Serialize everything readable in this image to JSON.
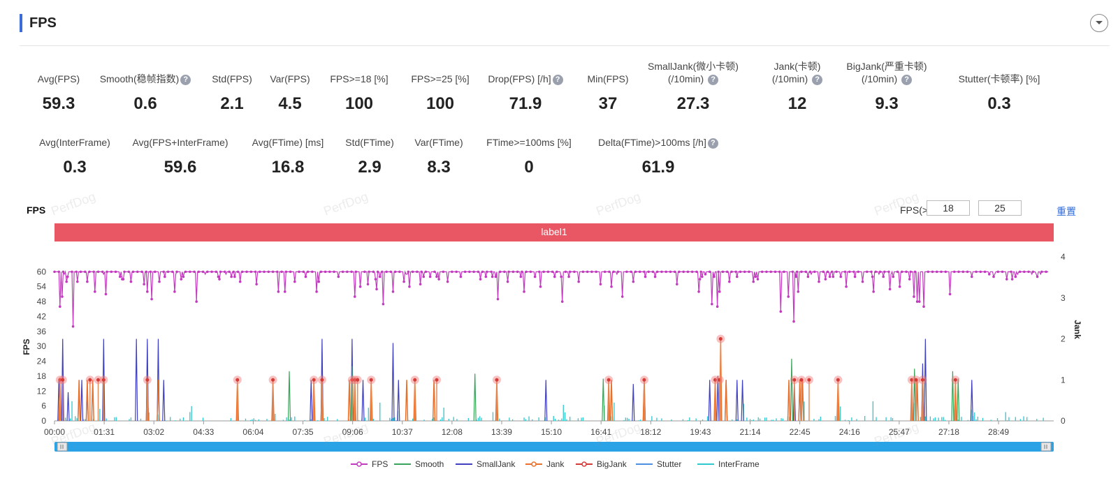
{
  "panel": {
    "title": "FPS"
  },
  "stats_row1": [
    {
      "label": "Avg(FPS)",
      "value": "59.3",
      "help": false
    },
    {
      "label": "Smooth(稳帧指数)",
      "value": "0.6",
      "help": true
    },
    {
      "label": "Std(FPS)",
      "value": "2.1",
      "help": false
    },
    {
      "label": "Var(FPS)",
      "value": "4.5",
      "help": false
    },
    {
      "label": "FPS>=18 [%]",
      "value": "100",
      "help": false
    },
    {
      "label": "FPS>=25 [%]",
      "value": "100",
      "help": false
    },
    {
      "label": "Drop(FPS) [/h]",
      "value": "71.9",
      "help": true
    },
    {
      "label": "Min(FPS)",
      "value": "37",
      "help": false
    },
    {
      "label": "SmallJank(微小卡顿)",
      "label2": "(/10min)",
      "value": "27.3",
      "help": true
    },
    {
      "label": "Jank(卡顿)",
      "label2": "(/10min)",
      "value": "12",
      "help": true
    },
    {
      "label": "BigJank(严重卡顿)",
      "label2": "(/10min)",
      "value": "9.3",
      "help": true
    },
    {
      "label": "Stutter(卡顿率) [%]",
      "value": "0.3",
      "help": false
    }
  ],
  "stats_row2": [
    {
      "label": "Avg(InterFrame)",
      "value": "0.3",
      "help": false
    },
    {
      "label": "Avg(FPS+InterFrame)",
      "value": "59.6",
      "help": false
    },
    {
      "label": "Avg(FTime) [ms]",
      "value": "16.8",
      "help": false
    },
    {
      "label": "Std(FTime)",
      "value": "2.9",
      "help": false
    },
    {
      "label": "Var(FTime)",
      "value": "8.3",
      "help": false
    },
    {
      "label": "FTime>=100ms [%]",
      "value": "0",
      "help": false
    },
    {
      "label": "Delta(FTime)>100ms [/h]",
      "value": "61.9",
      "help": true
    }
  ],
  "chart_header": {
    "title": "FPS",
    "threshold_label": "FPS(>=)",
    "threshold1": "18",
    "threshold2": "25",
    "reset_label": "重置",
    "watermark": "PerfDog"
  },
  "label_bar": {
    "text": "label1",
    "color": "#e95765"
  },
  "chart_data": {
    "type": "line",
    "title": "",
    "ylabel": "FPS",
    "y2label": "Jank",
    "ylim": [
      0,
      66
    ],
    "y2lim": [
      0,
      4
    ],
    "yticks": [
      "0",
      "6",
      "12",
      "18",
      "24",
      "30",
      "36",
      "42",
      "48",
      "54",
      "60"
    ],
    "y2ticks": [
      "0",
      "1",
      "2",
      "3",
      "4"
    ],
    "xticks": [
      "00:00",
      "01:31",
      "03:02",
      "04:33",
      "06:04",
      "07:35",
      "09:06",
      "10:37",
      "12:08",
      "13:39",
      "15:10",
      "16:41",
      "18:12",
      "19:43",
      "21:14",
      "22:45",
      "24:16",
      "25:47",
      "27:18",
      "28:49"
    ],
    "x_range_seconds": [
      0,
      1830
    ],
    "grid": false,
    "legend_position": "bottom",
    "series": [
      {
        "name": "FPS",
        "color": "#c23bbf",
        "axis": "left",
        "baseline": 60,
        "dips": [
          [
            10,
            46
          ],
          [
            14,
            50
          ],
          [
            22,
            56
          ],
          [
            35,
            38
          ],
          [
            42,
            56
          ],
          [
            60,
            56
          ],
          [
            75,
            52
          ],
          [
            95,
            51
          ],
          [
            120,
            58
          ],
          [
            140,
            56
          ],
          [
            165,
            55
          ],
          [
            170,
            52
          ],
          [
            178,
            49
          ],
          [
            192,
            56
          ],
          [
            220,
            52
          ],
          [
            260,
            48
          ],
          [
            300,
            58
          ],
          [
            330,
            58
          ],
          [
            340,
            56
          ],
          [
            370,
            55
          ],
          [
            410,
            52
          ],
          [
            422,
            52
          ],
          [
            440,
            56
          ],
          [
            460,
            58
          ],
          [
            480,
            52
          ],
          [
            485,
            56
          ],
          [
            520,
            58
          ],
          [
            550,
            50
          ],
          [
            560,
            54
          ],
          [
            575,
            55
          ],
          [
            590,
            53
          ],
          [
            603,
            47
          ],
          [
            620,
            52
          ],
          [
            640,
            56
          ],
          [
            650,
            54
          ],
          [
            670,
            55
          ],
          [
            700,
            58
          ],
          [
            720,
            56
          ],
          [
            745,
            58
          ],
          [
            790,
            58
          ],
          [
            812,
            49
          ],
          [
            830,
            56
          ],
          [
            860,
            52
          ],
          [
            890,
            54
          ],
          [
            930,
            48
          ],
          [
            960,
            56
          ],
          [
            1000,
            55
          ],
          [
            1020,
            54
          ],
          [
            1040,
            50
          ],
          [
            1060,
            56
          ],
          [
            1100,
            58
          ],
          [
            1140,
            55
          ],
          [
            1180,
            52
          ],
          [
            1205,
            47
          ],
          [
            1214,
            46
          ],
          [
            1218,
            52
          ],
          [
            1236,
            56
          ],
          [
            1250,
            58
          ],
          [
            1280,
            56
          ],
          [
            1330,
            44
          ],
          [
            1345,
            50
          ],
          [
            1355,
            40
          ],
          [
            1362,
            52
          ],
          [
            1400,
            56
          ],
          [
            1420,
            58
          ],
          [
            1450,
            54
          ],
          [
            1480,
            56
          ],
          [
            1500,
            52
          ],
          [
            1530,
            53
          ],
          [
            1549,
            54
          ],
          [
            1575,
            50
          ],
          [
            1581,
            48
          ],
          [
            1585,
            48
          ],
          [
            1592,
            46
          ],
          [
            1640,
            51
          ],
          [
            1680,
            58
          ],
          [
            1720,
            58
          ],
          [
            1760,
            58
          ],
          [
            1800,
            58
          ]
        ],
        "values": []
      },
      {
        "name": "Smooth",
        "color": "#3aa35a",
        "axis": "left",
        "spikes": [
          [
            430,
            20
          ],
          [
            545,
            22
          ],
          [
            770,
            19
          ],
          [
            1005,
            17
          ],
          [
            1350,
            25
          ],
          [
            1575,
            21
          ],
          [
            1645,
            20
          ],
          [
            1655,
            17
          ]
        ]
      },
      {
        "name": "SmallJank",
        "color": "#3f3fbf",
        "axis": "right",
        "spikes": [
          [
            8,
            1.0
          ],
          [
            15,
            2.0
          ],
          [
            25,
            0.7
          ],
          [
            45,
            0.8
          ],
          [
            50,
            1.0
          ],
          [
            60,
            0.7
          ],
          [
            90,
            2.0
          ],
          [
            150,
            2.0
          ],
          [
            170,
            2.0
          ],
          [
            190,
            2.0
          ],
          [
            200,
            1.0
          ],
          [
            470,
            1.0
          ],
          [
            490,
            2.0
          ],
          [
            545,
            2.0
          ],
          [
            565,
            1.0
          ],
          [
            620,
            1.9
          ],
          [
            630,
            1.0
          ],
          [
            900,
            1.0
          ],
          [
            1060,
            0.9
          ],
          [
            1080,
            1.0
          ],
          [
            1200,
            1.0
          ],
          [
            1215,
            1.1
          ],
          [
            1230,
            1.0
          ],
          [
            1250,
            1.0
          ],
          [
            1260,
            1.0
          ],
          [
            1355,
            1.0
          ],
          [
            1365,
            1.0
          ],
          [
            1590,
            1.4
          ],
          [
            1595,
            2.0
          ],
          [
            1680,
            1.0
          ]
        ]
      },
      {
        "name": "Jank",
        "color": "#e8702a",
        "axis": "right",
        "spikes": [
          [
            10,
            1.0
          ],
          [
            45,
            1.0
          ],
          [
            60,
            1.0
          ],
          [
            70,
            1.0
          ],
          [
            170,
            1.0
          ],
          [
            190,
            1.0
          ],
          [
            335,
            1.0
          ],
          [
            400,
            1.0
          ],
          [
            475,
            1.0
          ],
          [
            490,
            1.0
          ],
          [
            540,
            1.0
          ],
          [
            550,
            1.0
          ],
          [
            580,
            1.0
          ],
          [
            645,
            1.0
          ],
          [
            660,
            1.0
          ],
          [
            695,
            1.0
          ],
          [
            810,
            1.0
          ],
          [
            1015,
            1.0
          ],
          [
            1080,
            1.0
          ],
          [
            1020,
            1.0
          ],
          [
            1210,
            1.0
          ],
          [
            1220,
            2.0
          ],
          [
            1230,
            1.0
          ],
          [
            1345,
            1.0
          ],
          [
            1365,
            1.0
          ],
          [
            1370,
            1.0
          ],
          [
            1435,
            1.0
          ],
          [
            1570,
            1.0
          ],
          [
            1580,
            1.0
          ],
          [
            1590,
            1.0
          ],
          [
            1650,
            1.0
          ]
        ]
      },
      {
        "name": "BigJank",
        "color": "#d63a34",
        "axis": "right",
        "markers": [
          [
            10,
            1.0
          ],
          [
            15,
            1.0
          ],
          [
            65,
            1.0
          ],
          [
            80,
            1.0
          ],
          [
            90,
            1.0
          ],
          [
            170,
            1.0
          ],
          [
            335,
            1.0
          ],
          [
            400,
            1.0
          ],
          [
            475,
            1.0
          ],
          [
            490,
            1.0
          ],
          [
            545,
            1.0
          ],
          [
            550,
            1.0
          ],
          [
            555,
            1.0
          ],
          [
            580,
            1.0
          ],
          [
            660,
            1.0
          ],
          [
            700,
            1.0
          ],
          [
            810,
            1.0
          ],
          [
            1015,
            1.0
          ],
          [
            1080,
            1.0
          ],
          [
            1210,
            1.0
          ],
          [
            1218,
            1.0
          ],
          [
            1220,
            2.0
          ],
          [
            1355,
            1.0
          ],
          [
            1368,
            1.0
          ],
          [
            1382,
            1.0
          ],
          [
            1435,
            1.0
          ],
          [
            1570,
            1.0
          ],
          [
            1578,
            1.0
          ],
          [
            1590,
            1.0
          ],
          [
            1650,
            1.0
          ]
        ]
      },
      {
        "name": "Stutter",
        "color": "#4a8fe0",
        "axis": "right"
      },
      {
        "name": "InterFrame",
        "color": "#2ec8cf",
        "axis": "right"
      }
    ]
  },
  "slider": {
    "range": [
      0,
      1
    ]
  }
}
